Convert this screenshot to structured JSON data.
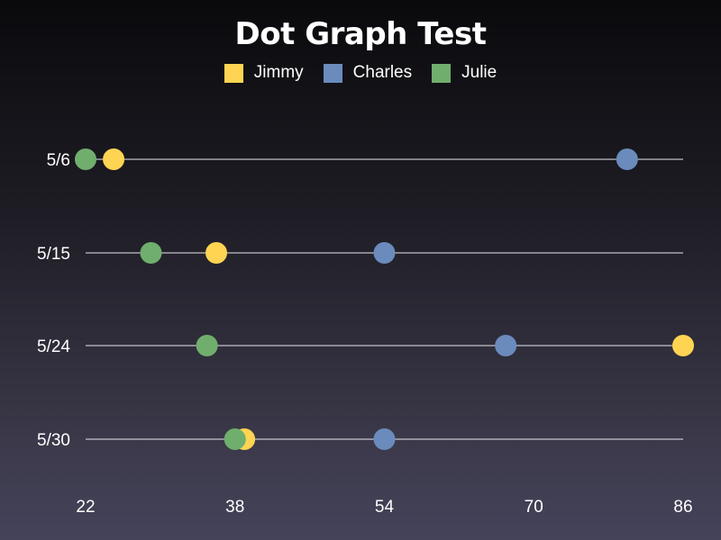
{
  "chart_data": {
    "type": "scatter",
    "title": "Dot Graph Test",
    "categories": [
      "5/6",
      "5/15",
      "5/24",
      "5/30"
    ],
    "xlim": [
      22,
      86
    ],
    "xticks": [
      22,
      38,
      54,
      70,
      86
    ],
    "legend_position": "top-center",
    "series": [
      {
        "name": "Jimmy",
        "color": "#ffd452",
        "values": [
          25,
          36,
          86,
          39
        ]
      },
      {
        "name": "Charles",
        "color": "#6b8bbd",
        "values": [
          80,
          54,
          67,
          54
        ]
      },
      {
        "name": "Julie",
        "color": "#70ae6e",
        "values": [
          22,
          29,
          35,
          38
        ]
      }
    ]
  }
}
